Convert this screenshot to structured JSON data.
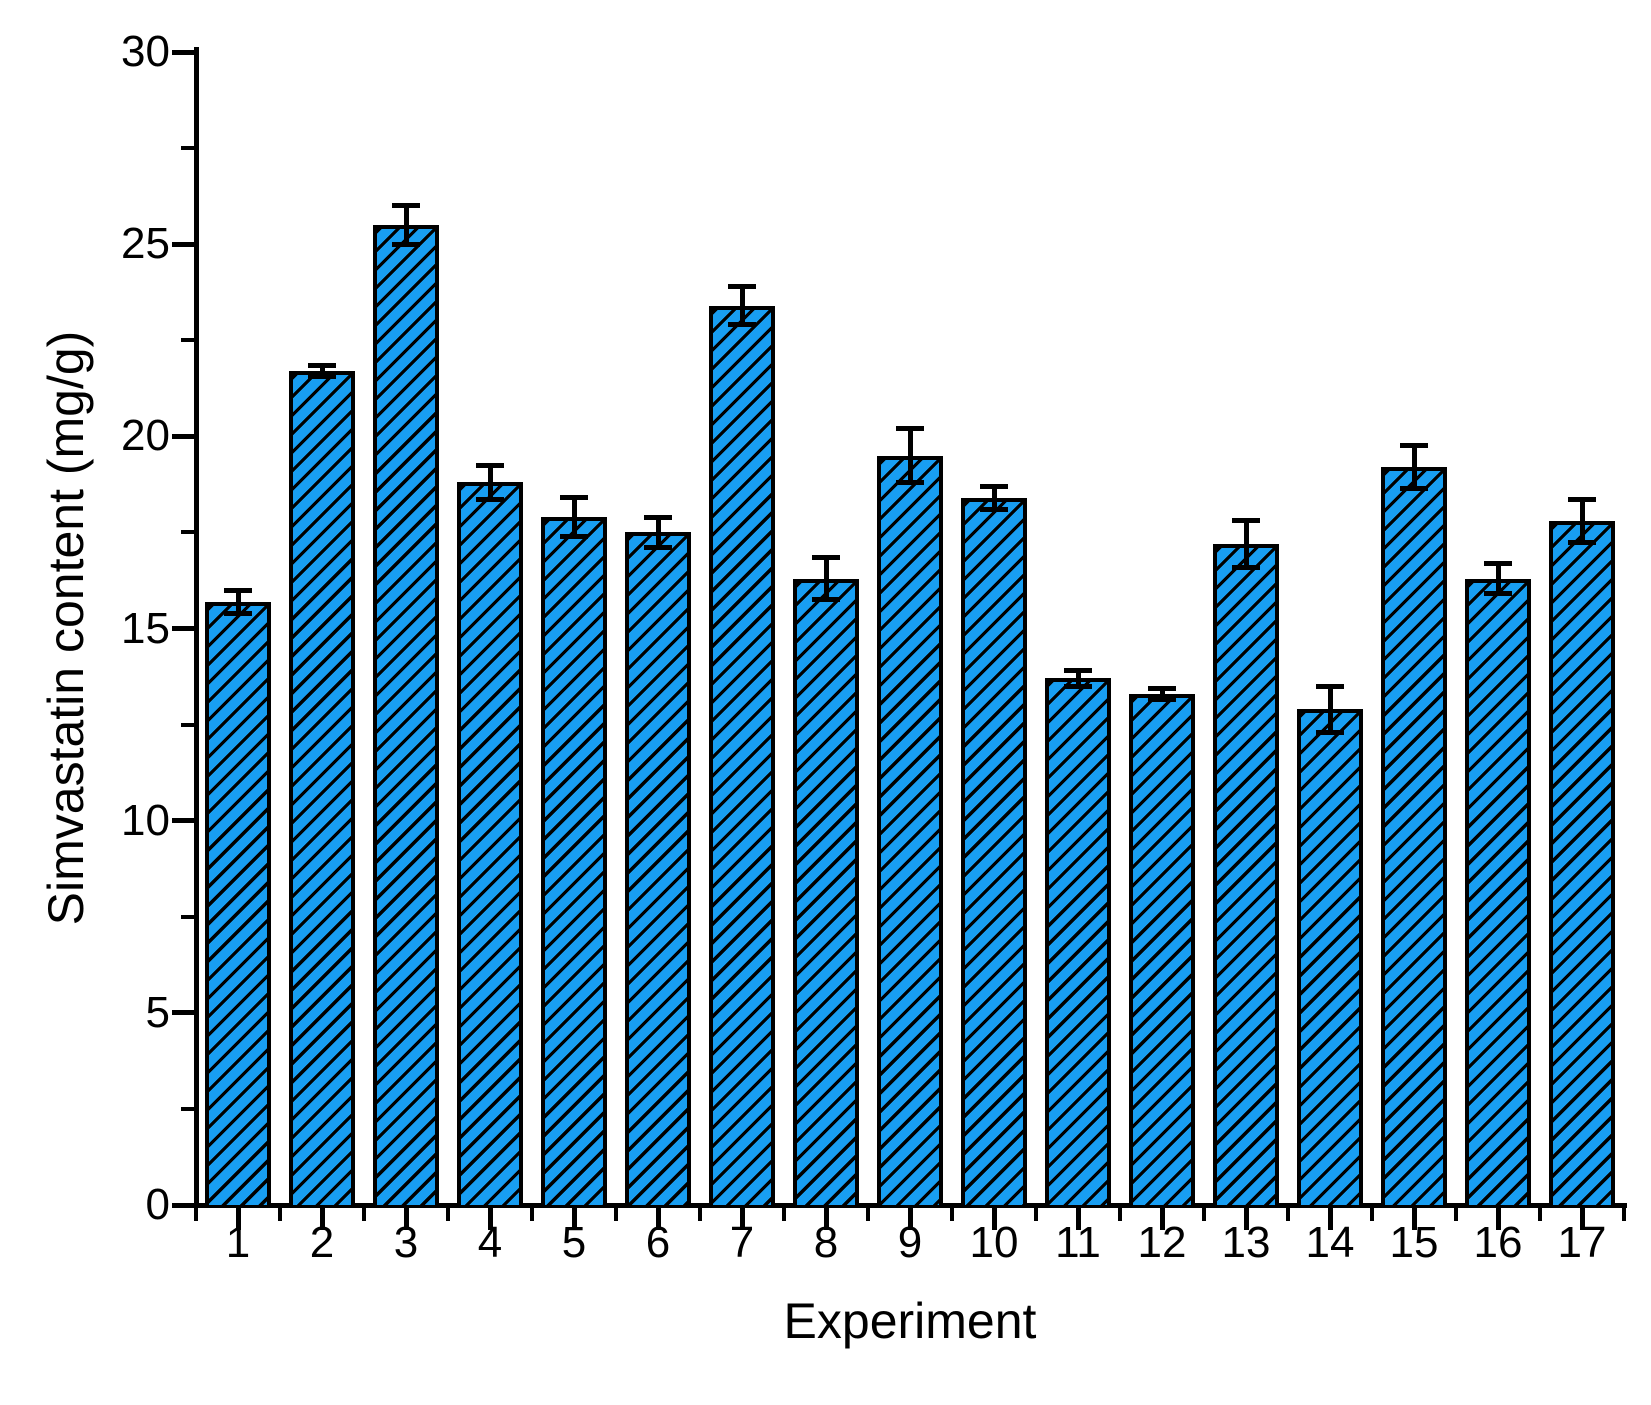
{
  "figure": {
    "background": "#ffffff",
    "description": "Hatched bar chart of simvastatin content per experiment with error bars"
  },
  "chart_data": {
    "type": "bar",
    "title": "",
    "xlabel": "Experiment",
    "ylabel": "Simvastatin content (mg/g)",
    "categories": [
      "1",
      "2",
      "3",
      "4",
      "5",
      "6",
      "7",
      "8",
      "9",
      "10",
      "11",
      "12",
      "13",
      "14",
      "15",
      "16",
      "17"
    ],
    "values": [
      15.7,
      21.7,
      25.5,
      18.8,
      17.9,
      17.5,
      23.4,
      16.3,
      19.5,
      18.4,
      13.7,
      13.3,
      17.2,
      12.9,
      19.2,
      16.3,
      17.8
    ],
    "errors": [
      0.3,
      0.15,
      0.5,
      0.45,
      0.5,
      0.4,
      0.5,
      0.55,
      0.7,
      0.3,
      0.2,
      0.15,
      0.6,
      0.6,
      0.55,
      0.4,
      0.55
    ],
    "series": [
      {
        "name": "Simvastatin content",
        "values": [
          15.7,
          21.7,
          25.5,
          18.8,
          17.9,
          17.5,
          23.4,
          16.3,
          19.5,
          18.4,
          13.7,
          13.3,
          17.2,
          12.9,
          19.2,
          16.3,
          17.8
        ]
      }
    ],
    "ylim": [
      0,
      30
    ],
    "yticks": [
      0,
      5,
      10,
      15,
      20,
      25,
      30
    ],
    "y_minor_step": 2.5,
    "grid": false,
    "legend": null,
    "bar_color": "#189EF2",
    "bar_hatch": "forward-diagonal-black",
    "hatch_color": "#000000",
    "error_bar_color": "#000000",
    "axis_color": "#000000"
  }
}
